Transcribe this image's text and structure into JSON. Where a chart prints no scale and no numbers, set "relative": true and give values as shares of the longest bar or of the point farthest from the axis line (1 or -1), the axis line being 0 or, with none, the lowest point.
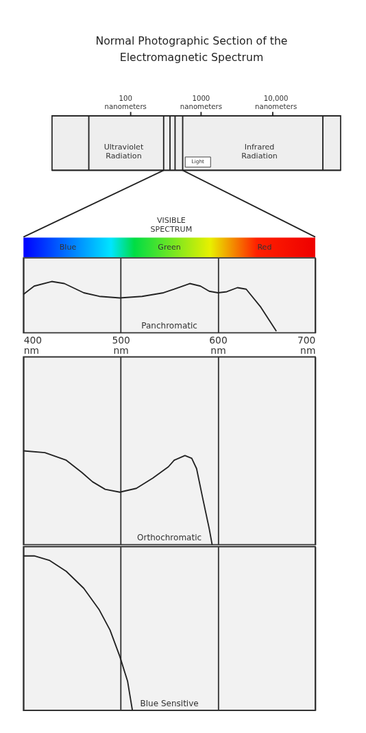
{
  "chart_data": [
    {
      "type": "line",
      "title": "Normal Photographic Section of the\nElectromagnetic Spectrum",
      "annotations": [
        "100 nanometers",
        "1000 nanometers",
        "10,000 nanometers",
        "Ultraviolet Radiation",
        "Infrared Radiation",
        "Light",
        "VISIBLE SPECTRUM",
        "Blue",
        "Green",
        "Red"
      ],
      "xlim": [
        400,
        700
      ],
      "xticks": [
        {
          "value": 400,
          "label": "400 nm"
        },
        {
          "value": 500,
          "label": "500 nm"
        },
        {
          "value": 600,
          "label": "600 nm"
        },
        {
          "value": 700,
          "label": "700 nm"
        }
      ],
      "tick_labels": "x",
      "grid": "x",
      "relative": true,
      "series": [
        {
          "name": "Panchromatic",
          "color": "#222222",
          "x": [
            400,
            411,
            429,
            442,
            462,
            478,
            499,
            522,
            544,
            555,
            571,
            582,
            591,
            600,
            609,
            620,
            629,
            644,
            660
          ],
          "values": [
            0.75,
            0.91,
            1,
            0.96,
            0.78,
            0.71,
            0.68,
            0.71,
            0.78,
            0.85,
            0.96,
            0.91,
            0.81,
            0.78,
            0.8,
            0.88,
            0.85,
            0.5,
            0.03
          ]
        }
      ]
    },
    {
      "type": "line",
      "xlim": [
        400,
        700
      ],
      "xticks": [
        400,
        500,
        600,
        700
      ],
      "tick_labels": false,
      "grid": "x",
      "relative": true,
      "series": [
        {
          "name": "Orthochromatic",
          "color": "#222222",
          "x": [
            400,
            422,
            444,
            460,
            471,
            484,
            499,
            516,
            533,
            549,
            555,
            566,
            573,
            578,
            584,
            591,
            594
          ],
          "values": [
            1,
            0.98,
            0.9,
            0.77,
            0.67,
            0.59,
            0.56,
            0.6,
            0.71,
            0.83,
            0.9,
            0.95,
            0.92,
            0.81,
            0.51,
            0.17,
            0
          ]
        }
      ]
    },
    {
      "type": "line",
      "xlim": [
        400,
        700
      ],
      "xticks": [
        400,
        500,
        600,
        700
      ],
      "tick_labels": false,
      "grid": "x",
      "relative": true,
      "series": [
        {
          "name": "Blue Sensitive",
          "color": "#222222",
          "x": [
            400,
            411,
            427,
            444,
            462,
            478,
            489,
            499,
            507,
            512
          ],
          "values": [
            1,
            1,
            0.97,
            0.9,
            0.79,
            0.65,
            0.52,
            0.35,
            0.19,
            0
          ]
        }
      ]
    }
  ]
}
